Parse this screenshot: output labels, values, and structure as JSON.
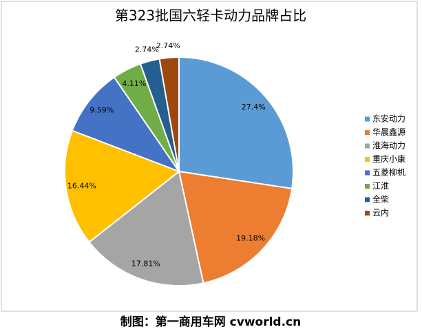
{
  "chart_data": {
    "type": "pie",
    "title": "第323批国六轻卡动力品牌占比",
    "categories": [
      "东安动力",
      "华晨鑫源",
      "淮海动力",
      "重庆小康",
      "五菱柳机",
      "江淮",
      "全柴",
      "云内"
    ],
    "values": [
      27.4,
      19.18,
      17.81,
      16.44,
      9.59,
      4.11,
      2.74,
      2.74
    ],
    "value_labels": [
      "27.4%",
      "19.18%",
      "17.81%",
      "16.44%",
      "9.59%",
      "4.11%",
      "2.74%",
      "2.74%"
    ],
    "colors": [
      "#5b9bd5",
      "#ed7d31",
      "#a5a5a5",
      "#ffc000",
      "#4472c4",
      "#70ad47",
      "#255e91",
      "#9e480e"
    ],
    "legend": "right"
  },
  "credit": "制图：第一商用车网 cvworld.cn"
}
